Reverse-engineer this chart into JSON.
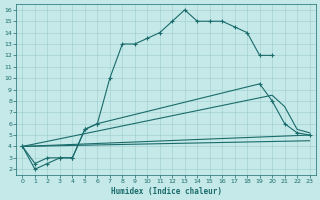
{
  "xlabel": "Humidex (Indice chaleur)",
  "bg_color": "#c5e8e8",
  "grid_color": "#9ecece",
  "line_color": "#1a6b6b",
  "xlim": [
    -0.5,
    23.5
  ],
  "ylim": [
    1.5,
    16.5
  ],
  "xticks": [
    0,
    1,
    2,
    3,
    4,
    5,
    6,
    7,
    8,
    9,
    10,
    11,
    12,
    13,
    14,
    15,
    16,
    17,
    18,
    19,
    20,
    21,
    22,
    23
  ],
  "yticks": [
    2,
    3,
    4,
    5,
    6,
    7,
    8,
    9,
    10,
    11,
    12,
    13,
    14,
    15,
    16
  ],
  "line1_x": [
    0,
    1,
    2,
    3,
    4,
    5,
    6,
    7,
    8,
    9,
    10,
    11,
    12,
    13,
    14,
    15,
    16,
    17,
    18,
    19,
    20
  ],
  "line1_y": [
    4,
    2,
    2.5,
    3,
    3,
    5.5,
    6,
    10,
    13,
    13,
    13.5,
    14,
    15,
    16,
    15,
    15,
    15,
    14.5,
    14,
    12,
    12
  ],
  "line2_x": [
    0,
    1,
    2,
    3,
    4,
    5,
    6,
    19,
    20,
    21,
    22,
    23
  ],
  "line2_y": [
    4,
    2.5,
    3,
    3,
    3,
    5.5,
    6,
    9.5,
    8,
    6,
    5.2,
    5.0
  ],
  "line3_x": [
    0,
    20,
    21,
    22,
    23
  ],
  "line3_y": [
    4,
    8.5,
    7.5,
    5.5,
    5.2
  ],
  "line4_x": [
    0,
    23
  ],
  "line4_y": [
    4,
    5.0
  ],
  "line5_x": [
    0,
    23
  ],
  "line5_y": [
    4,
    4.5
  ]
}
